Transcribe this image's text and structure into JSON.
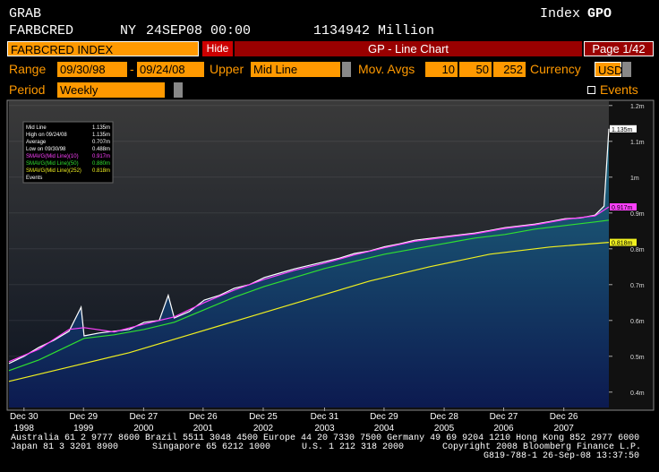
{
  "header": {
    "function": "GRAB",
    "ticker": "FARBCRED",
    "market": "NY",
    "date": "24SEP08 00:00",
    "last": "1134942 Million",
    "index_label": "Index",
    "index_name": "GPO"
  },
  "toolbar": {
    "security": "FARBCRED INDEX",
    "hide": "Hide",
    "title": "GP - Line Chart",
    "page": "Page 1/42"
  },
  "controls": {
    "range_label": "Range",
    "start": "09/30/98",
    "dash": "-",
    "end": "09/24/08",
    "upper_label": "Upper",
    "upper": "Mid Line",
    "mov_label": "Mov. Avgs",
    "mov_avgs": [
      10,
      50,
      252
    ],
    "currency_label": "Currency",
    "currency": "USD",
    "period_label": "Period",
    "period": "Weekly",
    "events": "Events"
  },
  "chart_data": {
    "type": "line",
    "xlim": [
      1998.75,
      2008.73
    ],
    "xticks": [
      {
        "value": 1999.0,
        "label": "Dec 30"
      },
      {
        "value": 1999.99,
        "label": "Dec 29"
      },
      {
        "value": 2000.99,
        "label": "Dec 27"
      },
      {
        "value": 2001.98,
        "label": "Dec 26"
      },
      {
        "value": 2002.98,
        "label": "Dec 25"
      },
      {
        "value": 2004.0,
        "label": "Dec 31"
      },
      {
        "value": 2004.99,
        "label": "Dec 29"
      },
      {
        "value": 2005.99,
        "label": "Dec 28"
      },
      {
        "value": 2006.98,
        "label": "Dec 27"
      },
      {
        "value": 2007.98,
        "label": "Dec 26"
      }
    ],
    "xtick_years": [
      "1998",
      "1999",
      "2000",
      "2001",
      "2002",
      "2003",
      "2004",
      "2005",
      "2006",
      "2007"
    ],
    "ylim": [
      0.357,
      1.212
    ],
    "yticks": [
      {
        "value": 0.4,
        "label": "0.4m"
      },
      {
        "value": 0.5,
        "label": "0.5m"
      },
      {
        "value": 0.6,
        "label": "0.6m"
      },
      {
        "value": 0.7,
        "label": "0.7m"
      },
      {
        "value": 0.8,
        "label": "0.8m"
      },
      {
        "value": 0.9,
        "label": "0.9m"
      },
      {
        "value": 1,
        "label": "1m"
      },
      {
        "value": 1.1,
        "label": "1.1m"
      },
      {
        "value": 1.2,
        "label": "1.2m"
      }
    ],
    "series": [
      {
        "name": "Mid Line",
        "color": "#ffffff",
        "value_label": "1.135m",
        "axis_tag": true,
        "area": true,
        "x": [
          1998.75,
          1999.0,
          1999.25,
          1999.5,
          1999.75,
          1999.95,
          2000.0,
          2000.25,
          2000.5,
          2000.75,
          2001.0,
          2001.25,
          2001.4,
          2001.5,
          2001.75,
          2002.0,
          2002.25,
          2002.5,
          2002.75,
          2003.0,
          2003.25,
          2003.5,
          2003.75,
          2004.0,
          2004.25,
          2004.5,
          2004.75,
          2005.0,
          2005.25,
          2005.5,
          2005.75,
          2006.0,
          2006.25,
          2006.5,
          2006.75,
          2007.0,
          2007.25,
          2007.5,
          2007.75,
          2008.0,
          2008.25,
          2008.5,
          2008.65,
          2008.73
        ],
        "values": [
          0.48,
          0.5,
          0.525,
          0.545,
          0.57,
          0.637,
          0.557,
          0.565,
          0.57,
          0.575,
          0.595,
          0.6,
          0.67,
          0.607,
          0.625,
          0.657,
          0.67,
          0.69,
          0.7,
          0.72,
          0.732,
          0.744,
          0.754,
          0.764,
          0.774,
          0.787,
          0.794,
          0.806,
          0.814,
          0.824,
          0.829,
          0.834,
          0.839,
          0.844,
          0.851,
          0.859,
          0.864,
          0.869,
          0.876,
          0.884,
          0.886,
          0.894,
          0.919,
          1.135
        ]
      },
      {
        "name": "SMAVG(Mid Line)(10)",
        "color": "#ff40ff",
        "value_label": "0.917m",
        "axis_tag": true,
        "x": [
          1998.75,
          1999.25,
          1999.75,
          2000.0,
          2000.5,
          2001.0,
          2001.5,
          2002.0,
          2002.5,
          2003.0,
          2003.5,
          2004.0,
          2004.5,
          2005.0,
          2005.5,
          2006.0,
          2006.5,
          2007.0,
          2007.5,
          2008.0,
          2008.5,
          2008.73
        ],
        "values": [
          0.485,
          0.52,
          0.575,
          0.58,
          0.568,
          0.59,
          0.61,
          0.65,
          0.685,
          0.715,
          0.74,
          0.76,
          0.783,
          0.803,
          0.821,
          0.832,
          0.842,
          0.857,
          0.867,
          0.882,
          0.892,
          0.917
        ]
      },
      {
        "name": "SMAVG(Mid Line)(50)",
        "color": "#30e030",
        "value_label": "0.880m",
        "axis_tag": false,
        "x": [
          1998.75,
          1999.25,
          1999.75,
          2000.0,
          2000.5,
          2001.0,
          2001.5,
          2002.0,
          2002.5,
          2003.0,
          2003.5,
          2004.0,
          2004.5,
          2005.0,
          2005.5,
          2006.0,
          2006.5,
          2007.0,
          2007.5,
          2008.0,
          2008.5,
          2008.73
        ],
        "values": [
          0.46,
          0.49,
          0.53,
          0.55,
          0.56,
          0.575,
          0.595,
          0.63,
          0.665,
          0.695,
          0.72,
          0.745,
          0.765,
          0.785,
          0.8,
          0.815,
          0.83,
          0.84,
          0.855,
          0.865,
          0.875,
          0.88
        ]
      },
      {
        "name": "SMAVG(Mid Line)(252)",
        "color": "#f0f020",
        "value_label": "0.818m",
        "axis_tag": true,
        "x": [
          1998.75,
          1999.75,
          2000.75,
          2001.75,
          2002.75,
          2003.75,
          2004.75,
          2005.75,
          2006.75,
          2007.75,
          2008.73
        ],
        "values": [
          0.43,
          0.47,
          0.51,
          0.56,
          0.61,
          0.66,
          0.71,
          0.75,
          0.785,
          0.805,
          0.818
        ]
      }
    ],
    "stats": [
      {
        "label": "High on 09/24/08",
        "value": "1.135m"
      },
      {
        "label": "Average",
        "value": "0.707m"
      },
      {
        "label": "Low on 09/30/98",
        "value": "0.488m"
      }
    ],
    "events": "Events"
  },
  "footer": {
    "line1": "Australia 61 2 9777 8600 Brazil 5511 3048 4500 Europe 44 20 7330 7500 Germany 49 69 9204 1210 Hong Kong 852 2977 6000",
    "japan": "Japan 81 3 3201 8900",
    "singapore": "Singapore 65 6212 1000",
    "us": "U.S. 1 212 318 2000",
    "copyright": "Copyright 2008 Bloomberg Finance L.P.",
    "stamp": "G819-788-1 26-Sep-08 13:37:50"
  }
}
